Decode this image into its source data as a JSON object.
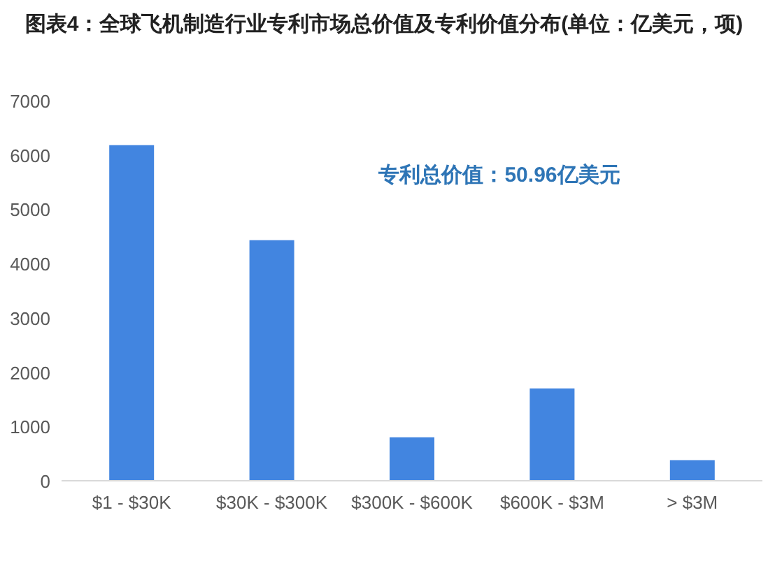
{
  "chart_data": {
    "type": "bar",
    "title": "图表4：全球飞机制造行业专利市场总价值及专利价值分布(单位：亿美元，项)",
    "categories": [
      "$1 - $30K",
      "$30K - $300K",
      "$300K - $600K",
      "$600K - $3M",
      "> $3M"
    ],
    "values": [
      6180,
      4430,
      800,
      1700,
      380
    ],
    "color": "#4285e0",
    "ylim": [
      0,
      7000
    ],
    "yticks": [
      0,
      1000,
      2000,
      3000,
      4000,
      5000,
      6000,
      7000
    ],
    "grid": false,
    "annotations": [
      "专利总价值：50.96亿美元"
    ]
  }
}
